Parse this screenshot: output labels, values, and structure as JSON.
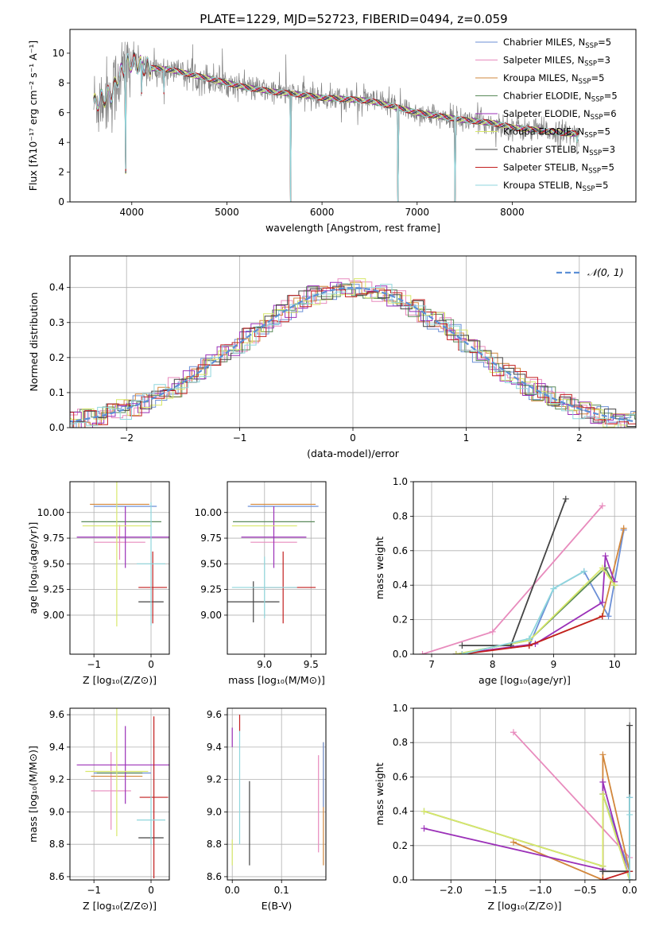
{
  "figure_title": "PLATE=1229, MJD=52723, FIBERID=0494, z=0.059",
  "colors": {
    "Chabrier MILES": "#6b8fd6",
    "Salpeter MILES": "#e88bbd",
    "Kroupa MILES": "#d2873c",
    "Chabrier ELODIE": "#5a8a5a",
    "Salpeter ELODIE": "#9b30b8",
    "Kroupa ELODIE": "#d8e86a",
    "Chabrier STELIB": "#444444",
    "Salpeter STELIB": "#c21f1f",
    "Kroupa STELIB": "#8fd6dc",
    "data": "#808080",
    "normal": "#5b8fd6"
  },
  "chart_data": [
    {
      "id": "spectrum",
      "type": "line",
      "title": "PLATE=1229, MJD=52723, FIBERID=0494, z=0.059",
      "xlabel": "wavelength [Angstrom, rest frame]",
      "ylabel": "Flux [fλ10⁻¹⁷ erg cm⁻² s⁻¹ A⁻¹]",
      "xlim": [
        3350,
        9300
      ],
      "ylim": [
        0,
        11.6
      ],
      "xticks": [
        4000,
        5000,
        6000,
        7000,
        8000
      ],
      "yticks": [
        0,
        2,
        4,
        6,
        8,
        10
      ],
      "grid": false,
      "legend_position": "top-right",
      "legend": [
        {
          "label": "Chabrier MILES, N",
          "sub": "SSP",
          "tail": "=5",
          "color_key": "Chabrier MILES"
        },
        {
          "label": "Salpeter MILES, N",
          "sub": "SSP",
          "tail": "=3",
          "color_key": "Salpeter MILES"
        },
        {
          "label": "Kroupa MILES, N",
          "sub": "SSP",
          "tail": "=5",
          "color_key": "Kroupa MILES"
        },
        {
          "label": "Chabrier ELODIE, N",
          "sub": "SSP",
          "tail": "=5",
          "color_key": "Chabrier ELODIE"
        },
        {
          "label": "Salpeter ELODIE, N",
          "sub": "SSP",
          "tail": "=6",
          "color_key": "Salpeter ELODIE"
        },
        {
          "label": "Kroupa ELODIE, N",
          "sub": "SSP",
          "tail": "=5",
          "color_key": "Kroupa ELODIE"
        },
        {
          "label": "Chabrier STELIB, N",
          "sub": "SSP",
          "tail": "=3",
          "color_key": "Chabrier STELIB"
        },
        {
          "label": "Salpeter STELIB, N",
          "sub": "SSP",
          "tail": "=5",
          "color_key": "Salpeter STELIB"
        },
        {
          "label": "Kroupa STELIB, N",
          "sub": "SSP",
          "tail": "=5",
          "color_key": "Kroupa STELIB"
        }
      ],
      "model_continuum": {
        "x": [
          3600,
          3700,
          3800,
          3850,
          3950,
          4000,
          4100,
          4200,
          4400,
          4600,
          4800,
          5000,
          5200,
          5500,
          5800,
          6000,
          6300,
          6500,
          6700,
          7000,
          7300,
          7500,
          7800,
          8000,
          8300,
          8600,
          8700
        ],
        "y": [
          6.6,
          7.0,
          7.3,
          8.3,
          9.3,
          9.4,
          9.2,
          9.0,
          8.9,
          8.6,
          8.3,
          8.0,
          7.7,
          7.4,
          7.2,
          7.0,
          6.9,
          6.8,
          6.5,
          6.0,
          5.7,
          5.5,
          5.3,
          5.0,
          4.8,
          4.6,
          4.6
        ]
      },
      "absorption_features": [
        {
          "x": 3934,
          "depth": 11.6
        },
        {
          "x": 4102,
          "depth": 3.5
        },
        {
          "x": 4340,
          "depth": 2.5
        },
        {
          "x": 5670,
          "depth": 11.6
        },
        {
          "x": 6800,
          "depth": 11.6
        },
        {
          "x": 7400,
          "depth": 11.6
        },
        {
          "x": 8680,
          "depth": 0.8
        }
      ]
    },
    {
      "id": "residual-histogram",
      "type": "step",
      "xlabel": "(data-model)/error",
      "ylabel": "Normed distribution",
      "xlim": [
        -2.5,
        2.5
      ],
      "ylim": [
        0,
        0.49
      ],
      "xticks": [
        -2,
        -1,
        0,
        1,
        2
      ],
      "yticks": [
        0.0,
        0.1,
        0.2,
        0.3,
        0.4
      ],
      "grid": true,
      "legend_position": "top-right",
      "legend_label": "𝒩(0, 1)",
      "bin_width": 0.1
    },
    {
      "id": "age-vs-Z",
      "type": "errorbar",
      "xlabel": "Z [log₁₀(Z/Z⊙)]",
      "ylabel": "age  [log₁₀(age/yr)]",
      "xlim": [
        -1.42,
        0.32
      ],
      "ylim": [
        8.62,
        10.3
      ],
      "xticks": [
        -1,
        0
      ],
      "yticks": [
        9.0,
        9.25,
        9.5,
        9.75,
        10.0
      ],
      "grid": true,
      "points": [
        {
          "model": "Chabrier MILES",
          "x": -0.45,
          "y": 10.06,
          "xerr": 0.55,
          "yerr": 0.0
        },
        {
          "model": "Salpeter MILES",
          "x": -0.55,
          "y": 9.71,
          "xerr": 0.45,
          "yerr": 0.17
        },
        {
          "model": "Kroupa MILES",
          "x": -0.55,
          "y": 10.08,
          "xerr": 0.52,
          "yerr": 0.0
        },
        {
          "model": "Chabrier ELODIE",
          "x": -0.52,
          "y": 9.91,
          "xerr": 0.7,
          "yerr": 0.0
        },
        {
          "model": "Salpeter ELODIE",
          "x": -0.45,
          "y": 9.76,
          "xerr": 0.85,
          "yerr": 0.3
        },
        {
          "model": "Kroupa ELODIE",
          "x": -0.6,
          "y": 9.87,
          "xerr": 0.6,
          "yerr": 0.98
        },
        {
          "model": "Chabrier STELIB",
          "x": 0.0,
          "y": 9.13,
          "xerr": 0.22,
          "yerr": 0.0
        },
        {
          "model": "Salpeter STELIB",
          "x": 0.03,
          "y": 9.27,
          "xerr": 0.25,
          "yerr": 0.35
        },
        {
          "model": "Kroupa STELIB",
          "x": 0.0,
          "y": 9.5,
          "xerr": 0.25,
          "yerr": 0.6
        }
      ]
    },
    {
      "id": "age-vs-mass",
      "type": "errorbar",
      "xlabel": "mass [log₁₀(M/M⊙)]",
      "ylabel": "",
      "xlim": [
        8.6,
        9.66
      ],
      "ylim": [
        8.62,
        10.3
      ],
      "xticks": [
        9.0,
        9.5
      ],
      "yticks": [
        9.0,
        9.25,
        9.5,
        9.75,
        10.0
      ],
      "grid": true,
      "points": [
        {
          "model": "Chabrier MILES",
          "x": 9.2,
          "y": 10.06,
          "xerr": 0.38,
          "yerr": 0.0
        },
        {
          "model": "Salpeter MILES",
          "x": 9.1,
          "y": 9.71,
          "xerr": 0.25,
          "yerr": 0.0
        },
        {
          "model": "Kroupa MILES",
          "x": 9.2,
          "y": 10.08,
          "xerr": 0.35,
          "yerr": 0.0
        },
        {
          "model": "Chabrier ELODIE",
          "x": 9.1,
          "y": 9.91,
          "xerr": 0.44,
          "yerr": 0.0
        },
        {
          "model": "Salpeter ELODIE",
          "x": 9.1,
          "y": 9.76,
          "xerr": 0.35,
          "yerr": 0.3
        },
        {
          "model": "Kroupa ELODIE",
          "x": 9.0,
          "y": 9.87,
          "xerr": 0.35,
          "yerr": 0.0
        },
        {
          "model": "Chabrier STELIB",
          "x": 8.88,
          "y": 9.13,
          "xerr": 0.28,
          "yerr": 0.2
        },
        {
          "model": "Salpeter STELIB",
          "x": 9.2,
          "y": 9.27,
          "xerr": 0.35,
          "yerr": 0.35
        },
        {
          "model": "Kroupa STELIB",
          "x": 9.0,
          "y": 9.27,
          "xerr": 0.35,
          "yerr": 0.3
        }
      ]
    },
    {
      "id": "mass-weight-vs-age",
      "type": "line",
      "xlabel": "age  [log₁₀(age/yr)]",
      "ylabel": "mass weight",
      "xlim": [
        6.7,
        10.35
      ],
      "ylim": [
        0,
        1
      ],
      "xticks": [
        7,
        8,
        9,
        10
      ],
      "yticks": [
        0.0,
        0.2,
        0.4,
        0.6,
        0.8,
        1.0
      ],
      "grid": true,
      "series": [
        {
          "model": "Chabrier MILES",
          "x": [
            7.4,
            8.6,
            9.0,
            9.5,
            9.9,
            10.15
          ],
          "y": [
            0.0,
            0.05,
            0.38,
            0.48,
            0.22,
            0.72
          ]
        },
        {
          "model": "Salpeter MILES",
          "x": [
            6.85,
            8.0,
            9.8
          ],
          "y": [
            0.0,
            0.13,
            0.86
          ]
        },
        {
          "model": "Kroupa MILES",
          "x": [
            7.4,
            8.6,
            9.8,
            10.15
          ],
          "y": [
            0.0,
            0.05,
            0.22,
            0.73
          ]
        },
        {
          "model": "Chabrier ELODIE",
          "x": [
            7.4,
            8.6,
            9.85,
            10.0
          ],
          "y": [
            0.0,
            0.08,
            0.5,
            0.4
          ]
        },
        {
          "model": "Salpeter ELODIE",
          "x": [
            7.4,
            8.7,
            9.8,
            9.85,
            10.0
          ],
          "y": [
            0.0,
            0.06,
            0.3,
            0.57,
            0.42
          ]
        },
        {
          "model": "Kroupa ELODIE",
          "x": [
            7.4,
            8.6,
            9.8,
            10.0
          ],
          "y": [
            0.0,
            0.08,
            0.5,
            0.4
          ]
        },
        {
          "model": "Chabrier STELIB",
          "x": [
            7.5,
            8.3,
            9.2
          ],
          "y": [
            0.05,
            0.05,
            0.9
          ]
        },
        {
          "model": "Salpeter STELIB",
          "x": [
            7.5,
            8.6,
            9.8
          ],
          "y": [
            0.0,
            0.05,
            0.22
          ]
        },
        {
          "model": "Kroupa STELIB",
          "x": [
            7.5,
            8.6,
            9.0,
            9.5
          ],
          "y": [
            0.0,
            0.09,
            0.38,
            0.48
          ]
        }
      ]
    },
    {
      "id": "mass-vs-Z",
      "type": "errorbar",
      "xlabel": "Z [log₁₀(Z/Z⊙)]",
      "ylabel": "mass [log₁₀(M/M⊙)]",
      "xlim": [
        -1.42,
        0.32
      ],
      "ylim": [
        8.58,
        9.64
      ],
      "xticks": [
        -1,
        0
      ],
      "yticks": [
        8.6,
        8.8,
        9.0,
        9.2,
        9.4,
        9.6
      ],
      "grid": true,
      "points": [
        {
          "model": "Chabrier MILES",
          "x": -0.5,
          "y": 9.24,
          "xerr": 0.5,
          "yerr": 0.0
        },
        {
          "model": "Salpeter MILES",
          "x": -0.7,
          "y": 9.13,
          "xerr": 0.35,
          "yerr": 0.24
        },
        {
          "model": "Kroupa MILES",
          "x": -0.6,
          "y": 9.22,
          "xerr": 0.45,
          "yerr": 0.0
        },
        {
          "model": "Chabrier ELODIE",
          "x": -0.55,
          "y": 9.24,
          "xerr": 0.4,
          "yerr": 0.0
        },
        {
          "model": "Salpeter ELODIE",
          "x": -0.45,
          "y": 9.29,
          "xerr": 0.85,
          "yerr": 0.24
        },
        {
          "model": "Kroupa ELODIE",
          "x": -0.6,
          "y": 9.25,
          "xerr": 0.55,
          "yerr": 0.4
        },
        {
          "model": "Chabrier STELIB",
          "x": 0.0,
          "y": 8.84,
          "xerr": 0.22,
          "yerr": 0.0
        },
        {
          "model": "Salpeter STELIB",
          "x": 0.05,
          "y": 9.09,
          "xerr": 0.25,
          "yerr": 0.5
        },
        {
          "model": "Kroupa STELIB",
          "x": 0.0,
          "y": 8.95,
          "xerr": 0.25,
          "yerr": 0.15
        }
      ]
    },
    {
      "id": "mass-vs-ebv",
      "type": "errorbar",
      "xlabel": "E(B-V)",
      "ylabel": "",
      "xlim": [
        -0.01,
        0.19
      ],
      "ylim": [
        8.58,
        9.64
      ],
      "xticks": [
        0.0,
        0.1
      ],
      "yticks": [
        8.6,
        8.8,
        9.0,
        9.2,
        9.4,
        9.6
      ],
      "grid": true,
      "points": [
        {
          "model": "Salpeter MILES",
          "x": 0.175,
          "y": 9.05,
          "xerr": 0.0,
          "yerr": 0.3
        },
        {
          "model": "Kroupa MILES",
          "x": 0.185,
          "y": 9.05,
          "xerr": 0.0,
          "yerr": 0.38
        },
        {
          "model": "Salpeter ELODIE",
          "x": 0.0,
          "y": 9.46,
          "xerr": 0.0,
          "yerr": 0.06
        },
        {
          "model": "Kroupa ELODIE",
          "x": 0.0,
          "y": 8.75,
          "xerr": 0.0,
          "yerr": 0.08
        },
        {
          "model": "Chabrier STELIB",
          "x": 0.035,
          "y": 8.93,
          "xerr": 0.0,
          "yerr": 0.26
        },
        {
          "model": "Salpeter STELIB",
          "x": 0.015,
          "y": 9.55,
          "xerr": 0.0,
          "yerr": 0.05
        },
        {
          "model": "Kroupa STELIB",
          "x": 0.015,
          "y": 9.15,
          "xerr": 0.0,
          "yerr": 0.35
        },
        {
          "model": "Chabrier MILES",
          "x": 0.185,
          "y": 9.23,
          "xerr": 0.0,
          "yerr": 0.2
        }
      ]
    },
    {
      "id": "mass-weight-vs-Z",
      "type": "line",
      "xlabel": "Z [log₁₀(Z/Z⊙)]",
      "ylabel": "mass weight",
      "xlim": [
        -2.42,
        0.07
      ],
      "ylim": [
        0,
        1
      ],
      "xticks": [
        -2.0,
        -1.5,
        -1.0,
        -0.5,
        0.0
      ],
      "yticks": [
        0.0,
        0.2,
        0.4,
        0.6,
        0.8,
        1.0
      ],
      "grid": true,
      "series": [
        {
          "model": "Chabrier MILES",
          "x": [
            -0.3,
            -0.3,
            0.0,
            0.0
          ],
          "y": [
            0.05,
            0.5,
            0.05,
            0.48
          ]
        },
        {
          "model": "Salpeter MILES",
          "x": [
            -1.3,
            0.0
          ],
          "y": [
            0.86,
            0.13
          ]
        },
        {
          "model": "Kroupa MILES",
          "x": [
            -1.3,
            -0.3,
            -0.3,
            0.0
          ],
          "y": [
            0.22,
            0.0,
            0.73,
            0.05
          ]
        },
        {
          "model": "Chabrier ELODIE",
          "x": [
            -2.3,
            -0.3,
            -0.3,
            0.0
          ],
          "y": [
            0.4,
            0.08,
            0.5,
            0.0
          ]
        },
        {
          "model": "Salpeter ELODIE",
          "x": [
            -2.3,
            -0.3,
            -0.3,
            0.0
          ],
          "y": [
            0.3,
            0.06,
            0.57,
            0.0
          ]
        },
        {
          "model": "Kroupa ELODIE",
          "x": [
            -2.3,
            -0.3,
            -0.3,
            0.0
          ],
          "y": [
            0.4,
            0.08,
            0.5,
            0.0
          ]
        },
        {
          "model": "Chabrier STELIB",
          "x": [
            -0.3,
            -0.3,
            0.0,
            0.0
          ],
          "y": [
            0.05,
            0.05,
            0.05,
            0.9
          ]
        },
        {
          "model": "Salpeter STELIB",
          "x": [
            -0.3,
            0.0
          ],
          "y": [
            0.0,
            0.05
          ]
        },
        {
          "model": "Kroupa STELIB",
          "x": [
            0.0,
            0.0,
            0.0
          ],
          "y": [
            0.0,
            0.38,
            0.48
          ]
        }
      ]
    }
  ]
}
